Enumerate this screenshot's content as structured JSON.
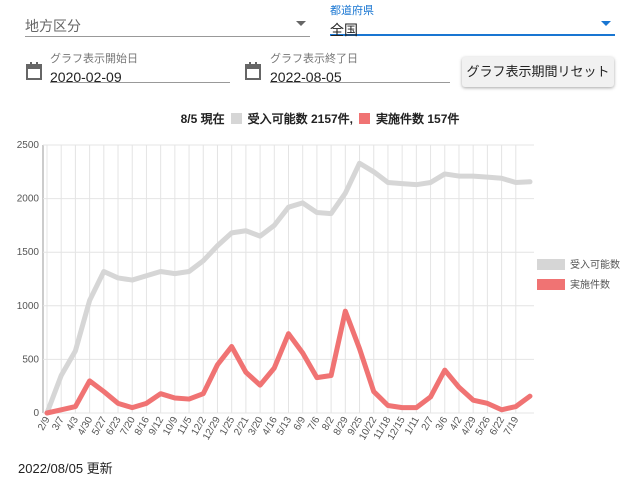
{
  "form": {
    "region_placeholder": "地方区分",
    "prefecture_label": "都道府県",
    "prefecture_value": "全国",
    "start_label": "グラフ表示開始日",
    "start_value": "2020-02-09",
    "end_label": "グラフ表示終了日",
    "end_value": "2022-08-05",
    "reset_button": "グラフ表示期間リセット"
  },
  "chart_header": {
    "date": "8/5 現在",
    "items": [
      "受入可能数 2157件,",
      "実施件数 157件"
    ]
  },
  "footer": "2022/08/05 更新",
  "chart_data": {
    "type": "line",
    "categories": [
      "2/9",
      "3/7",
      "4/3",
      "4/30",
      "5/27",
      "6/23",
      "7/20",
      "8/16",
      "9/12",
      "10/9",
      "11/5",
      "12/2",
      "12/29",
      "1/25",
      "2/21",
      "3/20",
      "4/16",
      "5/13",
      "6/9",
      "7/6",
      "8/2",
      "8/29",
      "9/25",
      "10/22",
      "11/18",
      "12/15",
      "1/11",
      "2/7",
      "3/6",
      "4/2",
      "4/29",
      "5/26",
      "6/22",
      "7/19",
      null
    ],
    "series": [
      {
        "name": "受入可能数",
        "color": "#d6d6d6",
        "values": [
          0,
          350,
          580,
          1050,
          1320,
          1260,
          1240,
          1280,
          1320,
          1300,
          1320,
          1420,
          1560,
          1680,
          1700,
          1650,
          1750,
          1920,
          1960,
          1870,
          1860,
          2050,
          2330,
          2250,
          2150,
          2140,
          2130,
          2150,
          2230,
          2210,
          2210,
          2200,
          2190,
          2150,
          2157
        ]
      },
      {
        "name": "実施件数",
        "color": "#f07373",
        "values": [
          0,
          30,
          60,
          300,
          200,
          90,
          50,
          90,
          180,
          140,
          130,
          180,
          450,
          620,
          380,
          260,
          420,
          740,
          560,
          330,
          350,
          950,
          600,
          200,
          70,
          50,
          50,
          150,
          400,
          240,
          120,
          90,
          30,
          60,
          157
        ]
      }
    ],
    "ylim": [
      0,
      2500
    ],
    "yticks": [
      0,
      500,
      1000,
      1500,
      2000,
      2500
    ],
    "grid": true,
    "legend": "right"
  }
}
